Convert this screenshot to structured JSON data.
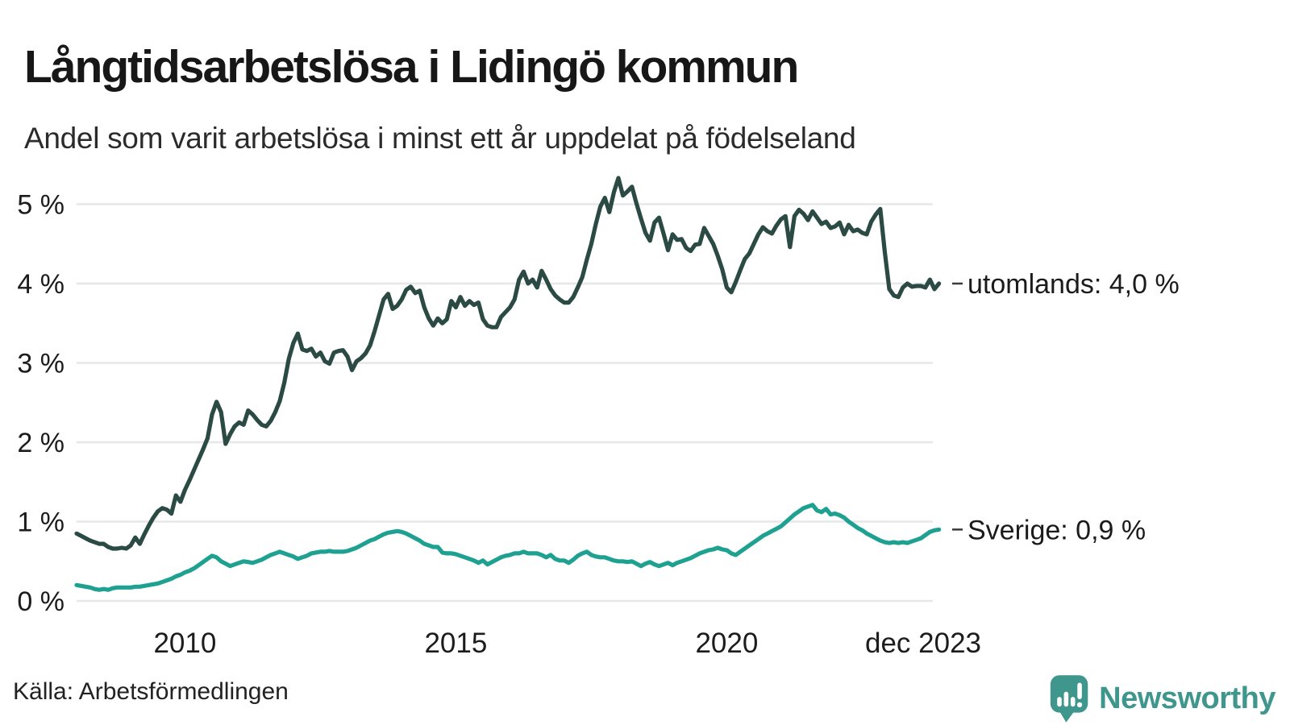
{
  "header": {
    "title": "Långtidsarbetslösa i Lidingö kommun",
    "subtitle": "Andel som varit arbetslösa i minst ett år uppdelat på födelseland"
  },
  "chart_data": {
    "type": "line",
    "title": "Långtidsarbetslösa i Lidingö kommun",
    "subtitle": "Andel som varit arbetslösa i minst ett år uppdelat på födelseland",
    "unit": "%",
    "x_start": "2008-01",
    "x_end": "2023-12",
    "frequency": "monthly",
    "ylim": [
      0,
      5.5
    ],
    "grid": "horizontal",
    "legend_position": "end-of-line-labels",
    "yticks": [
      {
        "label": "0 %",
        "value": 0
      },
      {
        "label": "1 %",
        "value": 1
      },
      {
        "label": "2 %",
        "value": 2
      },
      {
        "label": "3 %",
        "value": 3
      },
      {
        "label": "4 %",
        "value": 4
      },
      {
        "label": "5 %",
        "value": 5
      }
    ],
    "xticks": [
      {
        "label": "2010",
        "month": 24
      },
      {
        "label": "2015",
        "month": 84
      },
      {
        "label": "2020",
        "month": 144
      },
      {
        "label": "dec 2023",
        "month": 191
      }
    ],
    "series": [
      {
        "name": "utomlands",
        "label": "utomlands: 4,0 %",
        "last_value": 4.0,
        "color": "#2a4a43",
        "values": [
          0.85,
          0.82,
          0.79,
          0.76,
          0.74,
          0.72,
          0.72,
          0.68,
          0.66,
          0.66,
          0.67,
          0.66,
          0.7,
          0.8,
          0.72,
          0.84,
          0.95,
          1.05,
          1.13,
          1.17,
          1.15,
          1.1,
          1.33,
          1.25,
          1.4,
          1.52,
          1.65,
          1.78,
          1.91,
          2.05,
          2.35,
          2.51,
          2.38,
          1.98,
          2.1,
          2.2,
          2.25,
          2.22,
          2.4,
          2.35,
          2.28,
          2.22,
          2.2,
          2.27,
          2.38,
          2.52,
          2.75,
          3.05,
          3.25,
          3.37,
          3.17,
          3.15,
          3.18,
          3.08,
          3.13,
          3.02,
          2.99,
          3.13,
          3.15,
          3.16,
          3.08,
          2.91,
          3.02,
          3.06,
          3.12,
          3.22,
          3.4,
          3.6,
          3.8,
          3.87,
          3.68,
          3.72,
          3.8,
          3.92,
          3.96,
          3.88,
          3.91,
          3.7,
          3.56,
          3.47,
          3.56,
          3.5,
          3.55,
          3.78,
          3.7,
          3.83,
          3.72,
          3.78,
          3.73,
          3.76,
          3.55,
          3.47,
          3.45,
          3.45,
          3.58,
          3.64,
          3.7,
          3.8,
          4.05,
          4.15,
          4.0,
          4.05,
          3.95,
          4.16,
          4.05,
          3.93,
          3.85,
          3.8,
          3.76,
          3.76,
          3.83,
          3.95,
          4.08,
          4.3,
          4.5,
          4.75,
          4.97,
          5.08,
          4.9,
          5.15,
          5.33,
          5.11,
          5.16,
          5.22,
          5.01,
          4.82,
          4.64,
          4.54,
          4.77,
          4.83,
          4.63,
          4.42,
          4.62,
          4.55,
          4.56,
          4.45,
          4.41,
          4.49,
          4.5,
          4.7,
          4.6,
          4.5,
          4.35,
          4.18,
          3.95,
          3.89,
          4.02,
          4.17,
          4.31,
          4.38,
          4.5,
          4.62,
          4.71,
          4.66,
          4.63,
          4.73,
          4.81,
          4.85,
          4.46,
          4.85,
          4.93,
          4.88,
          4.8,
          4.91,
          4.83,
          4.75,
          4.78,
          4.7,
          4.72,
          4.77,
          4.62,
          4.74,
          4.66,
          4.68,
          4.64,
          4.62,
          4.78,
          4.87,
          4.94,
          4.4,
          3.93,
          3.85,
          3.83,
          3.95,
          4.0,
          3.96,
          3.97,
          3.97,
          3.95,
          4.05,
          3.93,
          4.0
        ]
      },
      {
        "name": "Sverige",
        "label": "Sverige: 0,9 %",
        "last_value": 0.9,
        "color": "#1fa192",
        "values": [
          0.2,
          0.19,
          0.18,
          0.17,
          0.15,
          0.14,
          0.15,
          0.14,
          0.16,
          0.17,
          0.17,
          0.17,
          0.17,
          0.18,
          0.18,
          0.19,
          0.2,
          0.21,
          0.22,
          0.24,
          0.26,
          0.28,
          0.31,
          0.33,
          0.36,
          0.38,
          0.41,
          0.45,
          0.49,
          0.53,
          0.57,
          0.55,
          0.5,
          0.47,
          0.44,
          0.46,
          0.48,
          0.5,
          0.49,
          0.48,
          0.5,
          0.52,
          0.55,
          0.58,
          0.6,
          0.62,
          0.6,
          0.58,
          0.56,
          0.53,
          0.55,
          0.57,
          0.6,
          0.61,
          0.62,
          0.62,
          0.63,
          0.62,
          0.62,
          0.62,
          0.63,
          0.65,
          0.67,
          0.7,
          0.73,
          0.76,
          0.78,
          0.81,
          0.84,
          0.86,
          0.87,
          0.88,
          0.87,
          0.85,
          0.82,
          0.79,
          0.76,
          0.72,
          0.7,
          0.68,
          0.68,
          0.61,
          0.6,
          0.6,
          0.59,
          0.57,
          0.55,
          0.53,
          0.51,
          0.48,
          0.51,
          0.46,
          0.49,
          0.52,
          0.55,
          0.57,
          0.58,
          0.6,
          0.6,
          0.62,
          0.6,
          0.6,
          0.6,
          0.58,
          0.55,
          0.58,
          0.53,
          0.51,
          0.51,
          0.48,
          0.52,
          0.57,
          0.6,
          0.62,
          0.58,
          0.56,
          0.55,
          0.55,
          0.53,
          0.51,
          0.5,
          0.5,
          0.49,
          0.5,
          0.47,
          0.44,
          0.47,
          0.49,
          0.46,
          0.44,
          0.46,
          0.48,
          0.45,
          0.48,
          0.5,
          0.52,
          0.54,
          0.57,
          0.6,
          0.62,
          0.64,
          0.65,
          0.67,
          0.65,
          0.64,
          0.6,
          0.58,
          0.62,
          0.66,
          0.7,
          0.74,
          0.78,
          0.82,
          0.85,
          0.88,
          0.91,
          0.94,
          0.99,
          1.04,
          1.09,
          1.13,
          1.17,
          1.19,
          1.21,
          1.14,
          1.12,
          1.16,
          1.09,
          1.1,
          1.08,
          1.05,
          1.0,
          0.96,
          0.92,
          0.89,
          0.85,
          0.82,
          0.79,
          0.76,
          0.74,
          0.73,
          0.74,
          0.73,
          0.74,
          0.73,
          0.75,
          0.77,
          0.79,
          0.83,
          0.87,
          0.89,
          0.9
        ]
      }
    ]
  },
  "footer": {
    "source": "Källa: Arbetsförmedlingen",
    "brand": "Newsworthy"
  },
  "colors": {
    "utomlands_line": "#2a4a43",
    "sverige_line": "#1fa192",
    "gridline": "#e7e7ea",
    "brand_teal": "#3e968c",
    "text": "#1a1a1a",
    "background": "#ffffff"
  }
}
